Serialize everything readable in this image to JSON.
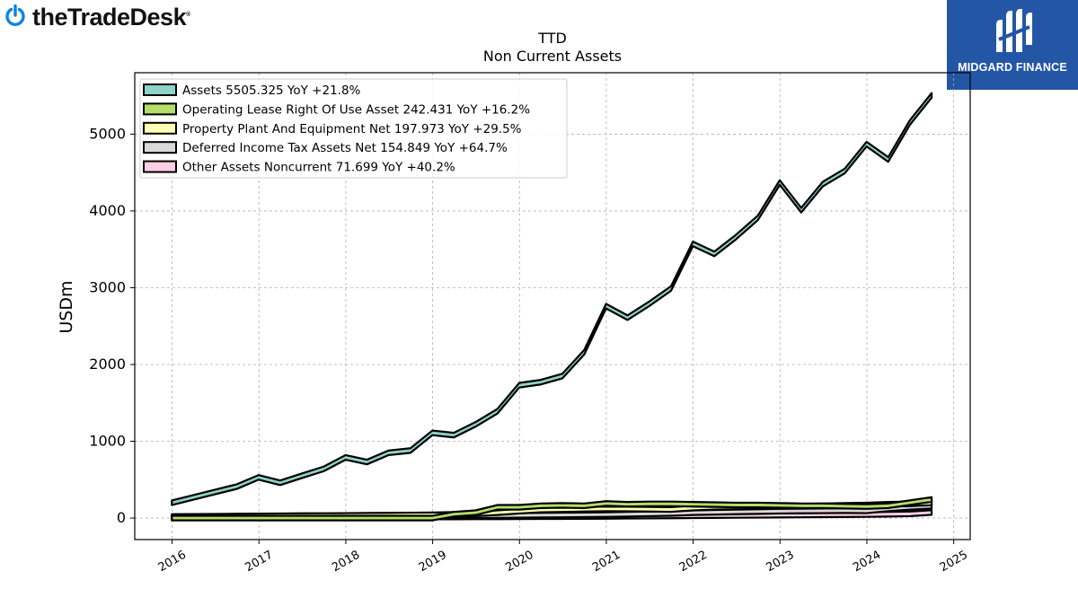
{
  "brand": {
    "left_logo_text": "theTradeDesk",
    "left_logo_mark": "®",
    "left_logo_icon": "power-icon",
    "right_logo_text": "MIDGARD FINANCE",
    "right_logo_icon": "mf-monogram-icon",
    "right_bg_color": "#2456a6"
  },
  "chart_data": {
    "type": "area",
    "title": "TTD",
    "subtitle": "Non Current  Assets",
    "ylabel": "USDm",
    "xlabel": "",
    "ylim": [
      -280,
      5800
    ],
    "xlim": [
      2015.57,
      2025.19
    ],
    "yticks": [
      0,
      1000,
      2000,
      3000,
      4000,
      5000
    ],
    "xticks": [
      "2016",
      "2017",
      "2018",
      "2019",
      "2020",
      "2021",
      "2022",
      "2023",
      "2024",
      "2025"
    ],
    "grid": true,
    "legend_position": "top-left",
    "x": [
      "2015-12-31",
      "2016-03-31",
      "2016-06-30",
      "2016-09-30",
      "2016-12-31",
      "2017-03-31",
      "2017-06-30",
      "2017-09-30",
      "2017-12-31",
      "2018-03-31",
      "2018-06-30",
      "2018-09-30",
      "2018-12-31",
      "2019-03-31",
      "2019-06-30",
      "2019-09-30",
      "2019-12-31",
      "2020-03-31",
      "2020-06-30",
      "2020-09-30",
      "2020-12-31",
      "2021-03-31",
      "2021-06-30",
      "2021-09-30",
      "2021-12-31",
      "2022-03-31",
      "2022-06-30",
      "2022-09-30",
      "2022-12-31",
      "2023-03-31",
      "2023-06-30",
      "2023-09-30",
      "2023-12-31",
      "2024-03-31",
      "2024-06-30",
      "2024-09-30"
    ],
    "series": [
      {
        "name": "Assets  5505.325 YoY +21.8%",
        "color": "#8dd3c7",
        "values": [
          200,
          270,
          340,
          410,
          530,
          460,
          550,
          640,
          790,
          730,
          850,
          880,
          1110,
          1080,
          1220,
          1390,
          1730,
          1770,
          1850,
          2160,
          2760,
          2610,
          2790,
          2990,
          3570,
          3440,
          3660,
          3910,
          4370,
          4010,
          4350,
          4520,
          4870,
          4670,
          5150,
          5505
        ]
      },
      {
        "name": "Operating Lease Right Of Use Asset  242.431 YoY +16.2%",
        "color": "#b3de69",
        "values": [
          0,
          0,
          0,
          0,
          0,
          0,
          0,
          0,
          0,
          0,
          0,
          0,
          0,
          50,
          70,
          140,
          140,
          160,
          165,
          160,
          190,
          180,
          185,
          185,
          180,
          175,
          170,
          170,
          165,
          160,
          160,
          155,
          150,
          160,
          200,
          242
        ]
      },
      {
        "name": "Property Plant And Equipment Net  197.973 YoY +29.5%",
        "color": "#ffffb3",
        "values": [
          20,
          22,
          24,
          26,
          28,
          30,
          32,
          33,
          34,
          36,
          38,
          40,
          42,
          48,
          55,
          70,
          90,
          105,
          110,
          115,
          120,
          118,
          115,
          112,
          130,
          140,
          145,
          150,
          153,
          155,
          160,
          165,
          170,
          180,
          185,
          198
        ]
      },
      {
        "name": "Deferred Income Tax Assets Net  154.849 YoY +64.7%",
        "color": "#d9d9d9",
        "values": [
          5,
          6,
          7,
          8,
          9,
          10,
          12,
          14,
          16,
          18,
          20,
          22,
          25,
          28,
          30,
          32,
          35,
          38,
          40,
          42,
          45,
          50,
          55,
          60,
          70,
          75,
          80,
          85,
          90,
          92,
          94,
          96,
          94,
          120,
          140,
          155
        ]
      },
      {
        "name": "Other Assets Noncurrent  71.699 YoY +40.2%",
        "color": "#fccde5",
        "values": [
          8,
          8,
          9,
          9,
          10,
          10,
          11,
          11,
          12,
          12,
          13,
          13,
          14,
          14,
          15,
          16,
          17,
          18,
          19,
          20,
          22,
          24,
          26,
          28,
          30,
          32,
          34,
          36,
          38,
          40,
          42,
          44,
          46,
          50,
          55,
          72
        ]
      }
    ]
  }
}
